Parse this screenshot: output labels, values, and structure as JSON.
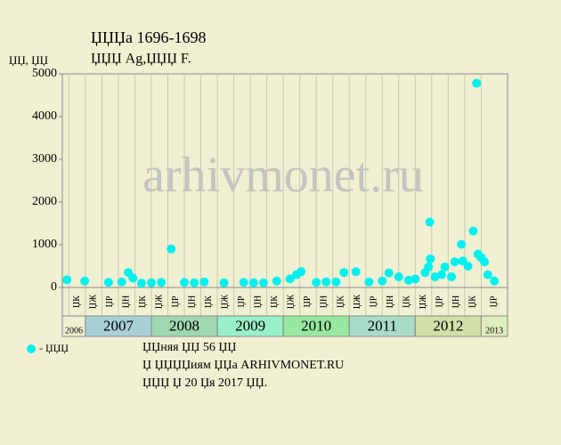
{
  "chart_data": {
    "type": "scatter",
    "title": "ЏЏЏа 1696-1698",
    "subtitle": "ЏЏЏ Ag,ЏЏЏ F.",
    "y_label": "ЏЏ, ЏЏ",
    "watermark": "arhivmonet.ru",
    "legend": "- ЏЏЏ",
    "notes": [
      "ЏЏняя ЏЏ 56 ЏЏ",
      "Џ ЏЏЏЏиям ЏЏа ARHIVMONET.RU",
      "ЏЏЏ Џ 20 Џя 2017 ЏЏ."
    ],
    "color": "#00f0f0",
    "xlim": [
      2006.65,
      2013.4
    ],
    "ylim": [
      0,
      5000
    ],
    "yticks": [
      0,
      1000,
      2000,
      3000,
      4000,
      5000
    ],
    "xticks": [
      {
        "value": 2006.75,
        "label": "ЏК"
      },
      {
        "value": 2007,
        "label": "ЏЖ"
      },
      {
        "value": 2007.25,
        "label": "ЏР"
      },
      {
        "value": 2007.5,
        "label": "ЏН"
      },
      {
        "value": 2007.75,
        "label": "ЏК"
      },
      {
        "value": 2008,
        "label": "ЏЖ"
      },
      {
        "value": 2008.25,
        "label": "ЏР"
      },
      {
        "value": 2008.5,
        "label": "ЏН"
      },
      {
        "value": 2008.75,
        "label": "ЏК"
      },
      {
        "value": 2009,
        "label": "ЏЖ"
      },
      {
        "value": 2009.25,
        "label": "ЏР"
      },
      {
        "value": 2009.5,
        "label": "ЏН"
      },
      {
        "value": 2009.75,
        "label": "ЏК"
      },
      {
        "value": 2010,
        "label": "ЏЖ"
      },
      {
        "value": 2010.25,
        "label": "ЏР"
      },
      {
        "value": 2010.5,
        "label": "ЏН"
      },
      {
        "value": 2010.75,
        "label": "ЏК"
      },
      {
        "value": 2011,
        "label": "ЏЖ"
      },
      {
        "value": 2011.25,
        "label": "ЏР"
      },
      {
        "value": 2011.5,
        "label": "ЏН"
      },
      {
        "value": 2011.75,
        "label": "ЏК"
      },
      {
        "value": 2012,
        "label": "ЏЖ"
      },
      {
        "value": 2012.25,
        "label": "ЏР"
      },
      {
        "value": 2012.5,
        "label": "ЏН"
      },
      {
        "value": 2012.75,
        "label": "ЏК"
      },
      {
        "value": 2013,
        "label": "ЏР"
      }
    ],
    "year_bands": [
      {
        "label": "2006",
        "start": 2006.65,
        "end": 2007,
        "color": "#f0f0d2"
      },
      {
        "label": "2007",
        "start": 2007,
        "end": 2008,
        "color": "#a8d0d8"
      },
      {
        "label": "2008",
        "start": 2008,
        "end": 2009,
        "color": "#a0d8b0"
      },
      {
        "label": "2009",
        "start": 2009,
        "end": 2010,
        "color": "#98f0c8"
      },
      {
        "label": "2010",
        "start": 2010,
        "end": 2011,
        "color": "#98e8a0"
      },
      {
        "label": "2011",
        "start": 2011,
        "end": 2012,
        "color": "#a8dcc8"
      },
      {
        "label": "2012",
        "start": 2012,
        "end": 2013,
        "color": "#d0e0a8"
      },
      {
        "label": "2013",
        "start": 2013,
        "end": 2013.4,
        "color": "#ddeebb"
      }
    ],
    "x": [
      2006.72,
      2006.99,
      2007.35,
      2007.55,
      2007.65,
      2007.72,
      2007.85,
      2008.0,
      2008.15,
      2008.3,
      2008.5,
      2008.65,
      2008.8,
      2009.1,
      2009.4,
      2009.55,
      2009.7,
      2009.9,
      2010.1,
      2010.2,
      2010.27,
      2010.5,
      2010.65,
      2010.8,
      2010.92,
      2011.1,
      2011.3,
      2011.5,
      2011.6,
      2011.75,
      2011.9,
      2012.0,
      2012.15,
      2012.2,
      2012.22,
      2012.23,
      2012.3,
      2012.4,
      2012.45,
      2012.55,
      2012.6,
      2012.7,
      2012.72,
      2012.8,
      2012.88,
      2012.93,
      2012.95,
      2013.0,
      2013.05,
      2013.1,
      2013.2
    ],
    "values": [
      180,
      150,
      120,
      130,
      350,
      220,
      100,
      110,
      120,
      900,
      120,
      110,
      130,
      110,
      120,
      110,
      110,
      150,
      200,
      300,
      370,
      120,
      130,
      130,
      350,
      370,
      130,
      150,
      340,
      250,
      170,
      200,
      350,
      480,
      1530,
      670,
      250,
      300,
      480,
      250,
      600,
      1010,
      620,
      500,
      1320,
      4780,
      780,
      700,
      600,
      300,
      150
    ]
  }
}
